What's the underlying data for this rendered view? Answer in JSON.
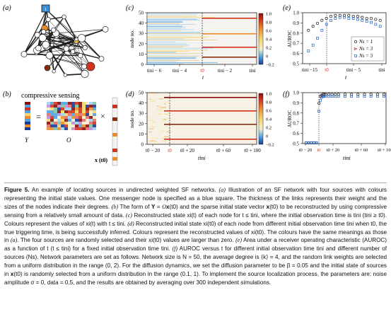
{
  "figure": {
    "panel_labels": [
      "(a)",
      "(b)",
      "(c)",
      "(d)",
      "(e)",
      "(f)"
    ],
    "panel_a": {
      "messenger_label": "1"
    },
    "panel_b": {
      "title": "compressive sensing",
      "eq_sign": "=",
      "times_sign": "×",
      "Y_label": "Y",
      "O_label": "O",
      "x_label": "x (t0)"
    },
    "panel_c": {
      "ylabel": "node no.",
      "xlabel": "t",
      "yticks": [
        "50",
        "40",
        "30",
        "20",
        "10",
        "0"
      ],
      "xticks": [
        "tini − 6",
        "tini − 4",
        "t0",
        "tini − 2",
        "tini"
      ],
      "colorbar_ticks": [
        "1.0",
        "0.8",
        "0.6",
        "0.4",
        "0.2",
        "0",
        "−0.2"
      ]
    },
    "panel_d": {
      "ylabel": "node no.",
      "xlabel": "tini",
      "yticks": [
        "50",
        "40",
        "30",
        "20",
        "10",
        "0"
      ],
      "xticks": [
        "t0 − 20",
        "t0",
        "t0 + 20",
        "t0 + 60",
        "t0 + 100"
      ],
      "colorbar_ticks": [
        "1.0",
        "0.8",
        "0.6",
        "0.4",
        "0.2",
        "0",
        "−0.2"
      ]
    },
    "panel_e": {
      "ylabel": "AUROC",
      "xlabel": "t",
      "yticks": [
        "1.0",
        "0.9",
        "0.8",
        "0.7",
        "0.6",
        "0.5"
      ],
      "xticks": [
        "tini −15",
        "t0",
        "tini − 5",
        "tini"
      ],
      "legend": [
        "Ns = 1",
        "Ns = 3",
        "Ns = 5"
      ]
    },
    "panel_f": {
      "ylabel": "AUROC",
      "xlabel": "tini",
      "yticks": [
        "1.0",
        "0.9",
        "0.8",
        "0.7",
        "0.6",
        "0.5"
      ],
      "xticks": [
        "t0 − 20",
        "t0",
        "t0 + 20",
        "t0 + 60",
        "t0 + 100"
      ]
    }
  },
  "chart_data": [
    {
      "panel": "e",
      "type": "scatter",
      "xlabel": "t",
      "ylabel": "AUROC",
      "ylim": [
        0.5,
        1.0
      ],
      "x": [
        -16,
        -15,
        -14,
        -13,
        -12,
        -11,
        -10,
        -9,
        -8,
        -7,
        -6,
        -5,
        -4,
        -3,
        -2,
        -1,
        0
      ],
      "series": [
        {
          "name": "Ns = 1",
          "color": "#1a1a1a",
          "values": [
            0.83,
            0.87,
            0.9,
            0.93,
            0.95,
            0.97,
            0.98,
            0.98,
            0.98,
            0.98,
            0.97,
            0.97,
            0.96,
            0.95,
            0.95,
            0.94,
            0.93
          ]
        },
        {
          "name": "Ns = 3",
          "color": "#d62728",
          "values": [
            0.7,
            0.76,
            0.82,
            0.88,
            0.92,
            0.95,
            0.96,
            0.97,
            0.97,
            0.97,
            0.96,
            0.96,
            0.95,
            0.94,
            0.93,
            0.92,
            0.9
          ]
        },
        {
          "name": "Ns = 5",
          "color": "#1f5fbf",
          "values": [
            0.62,
            0.68,
            0.75,
            0.83,
            0.89,
            0.93,
            0.95,
            0.96,
            0.96,
            0.95,
            0.95,
            0.94,
            0.93,
            0.92,
            0.91,
            0.89,
            0.87
          ]
        }
      ]
    },
    {
      "panel": "f",
      "type": "scatter",
      "xlabel": "tini",
      "ylabel": "AUROC",
      "ylim": [
        0.5,
        1.0
      ],
      "x": [
        -20,
        -16,
        -12,
        -8,
        -4,
        0,
        2,
        4,
        6,
        8,
        10,
        15,
        20,
        25,
        30,
        40,
        50,
        60,
        70,
        80,
        90,
        100
      ],
      "series": [
        {
          "name": "Ns = 1",
          "color": "#1a1a1a",
          "values": [
            0.5,
            0.5,
            0.5,
            0.5,
            0.5,
            0.9,
            0.97,
            0.98,
            0.99,
            0.99,
            0.99,
            0.99,
            0.99,
            0.99,
            0.99,
            0.99,
            0.99,
            0.99,
            0.99,
            0.99,
            0.99,
            0.99
          ]
        },
        {
          "name": "Ns = 3",
          "color": "#d62728",
          "values": [
            0.5,
            0.5,
            0.5,
            0.5,
            0.5,
            0.86,
            0.95,
            0.97,
            0.98,
            0.98,
            0.98,
            0.98,
            0.98,
            0.98,
            0.98,
            0.98,
            0.98,
            0.98,
            0.98,
            0.98,
            0.98,
            0.98
          ]
        },
        {
          "name": "Ns = 5",
          "color": "#1f5fbf",
          "values": [
            0.5,
            0.5,
            0.5,
            0.5,
            0.5,
            0.82,
            0.93,
            0.96,
            0.97,
            0.97,
            0.97,
            0.97,
            0.97,
            0.97,
            0.97,
            0.97,
            0.97,
            0.97,
            0.97,
            0.97,
            0.97,
            0.97
          ]
        }
      ]
    }
  ],
  "caption": {
    "lead": "Figure 5.",
    "parts": [
      {
        "t": " An example of locating sources in undirected weighted SF networks. "
      },
      {
        "t": "(a)",
        "i": true
      },
      {
        "t": " Illustration of an SF network with four sources with colours representing the initial state values. One messenger node is specified as a blue square. The thickness of the links represents their weight and the sizes of the nodes indicate their degrees. "
      },
      {
        "t": "(b)",
        "i": true
      },
      {
        "t": " The form of "
      },
      {
        "t": "Y",
        "b": true
      },
      {
        "t": " = "
      },
      {
        "t": "O",
        "i": true
      },
      {
        "t": "x",
        "b": true
      },
      {
        "t": "(t0) and the sparse initial state vector "
      },
      {
        "t": "x",
        "b": true
      },
      {
        "t": "(t0) to be reconstructed by using compressive sensing from a relatively small amount of data. "
      },
      {
        "t": "(c)",
        "i": true
      },
      {
        "t": " Reconstructed state xi(t) of each node for t ≤ tini, where the initial observation time is tini (tini ≥ t0). Colours represent the values of xi(t) with t ≤ tini. "
      },
      {
        "t": "(d)",
        "i": true
      },
      {
        "t": " Reconstructed initial state xi(t0) of each node from different initial observation time tini when t0, the true triggering time, is being successfully inferred. Colours represent the reconstructed values of xi(t0). The colours have the same meanings as those in "
      },
      {
        "t": "(a)",
        "i": true
      },
      {
        "t": ". The four sources are randomly selected and their xi(t0) values are larger than zero. "
      },
      {
        "t": "(e)",
        "i": true
      },
      {
        "t": " Area under a receiver operating characteristic (AUROC) as a function of t (t ≤ tini) for a fixed initial observation time tini. "
      },
      {
        "t": "(f)",
        "i": true
      },
      {
        "t": " AUROC versus t for different initial observation time tini and different number of sources (Ns). Network parameters are set as follows. Network size is N = 50, the average degree is ⟨k⟩ = 4, and the random link weights are selected from a uniform distribution in the range (0, 2). For the diffusion dynamics, we set the diffusion parameter to be β = 0.05 and the initial state of sources in "
      },
      {
        "t": "x",
        "b": true
      },
      {
        "t": "(t0) is randomly selected from a uniform distribution in the range (0.1, 1). To implement the source localization process, the parameters are: noise amplitude σ = 0, data = 0.5, and the results are obtained by averaging over 300 independent simulations."
      }
    ]
  }
}
